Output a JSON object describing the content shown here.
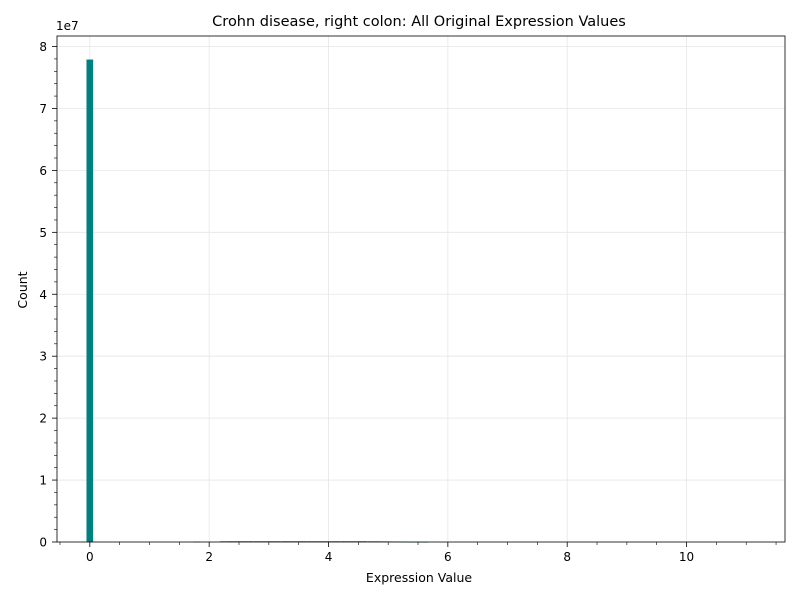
{
  "chart_data": {
    "type": "bar",
    "title": "Crohn disease, right colon: All Original Expression Values",
    "xlabel": "Expression Value",
    "ylabel": "Count",
    "offset_label": "1e7",
    "x_ticks": [
      "0",
      "2",
      "4",
      "6",
      "8",
      "10"
    ],
    "y_ticks": [
      "0",
      "1",
      "2",
      "3",
      "4",
      "5",
      "6",
      "7",
      "8"
    ],
    "xlim": [
      -0.55,
      11.65
    ],
    "ylim": [
      0,
      81700000
    ],
    "grid": true,
    "bin_width": 0.112,
    "bins": [
      {
        "x": 0.0,
        "count": 77900000
      },
      {
        "x": 1.79,
        "count": 40000
      },
      {
        "x": 2.24,
        "count": 110000
      },
      {
        "x": 2.35,
        "count": 120000
      },
      {
        "x": 2.46,
        "count": 120000
      },
      {
        "x": 2.57,
        "count": 120000
      },
      {
        "x": 2.68,
        "count": 120000
      },
      {
        "x": 2.8,
        "count": 120000
      },
      {
        "x": 2.91,
        "count": 120000
      },
      {
        "x": 3.02,
        "count": 120000
      },
      {
        "x": 3.13,
        "count": 120000
      },
      {
        "x": 3.25,
        "count": 120000
      },
      {
        "x": 3.36,
        "count": 120000
      },
      {
        "x": 3.47,
        "count": 120000
      },
      {
        "x": 3.58,
        "count": 120000
      },
      {
        "x": 3.7,
        "count": 120000
      },
      {
        "x": 3.81,
        "count": 120000
      },
      {
        "x": 3.92,
        "count": 120000
      },
      {
        "x": 4.03,
        "count": 120000
      },
      {
        "x": 4.14,
        "count": 120000
      },
      {
        "x": 4.26,
        "count": 120000
      },
      {
        "x": 4.37,
        "count": 120000
      },
      {
        "x": 4.48,
        "count": 120000
      },
      {
        "x": 4.59,
        "count": 120000
      },
      {
        "x": 4.71,
        "count": 110000
      },
      {
        "x": 4.82,
        "count": 110000
      },
      {
        "x": 4.93,
        "count": 100000
      },
      {
        "x": 5.04,
        "count": 90000
      },
      {
        "x": 5.16,
        "count": 70000
      },
      {
        "x": 5.27,
        "count": 50000
      },
      {
        "x": 5.38,
        "count": 30000
      },
      {
        "x": 5.49,
        "count": 20000
      },
      {
        "x": 5.61,
        "count": 10000
      }
    ],
    "colors": {
      "bar": "#008080",
      "grid": "#e6e6e6",
      "axis": "#000000"
    }
  }
}
